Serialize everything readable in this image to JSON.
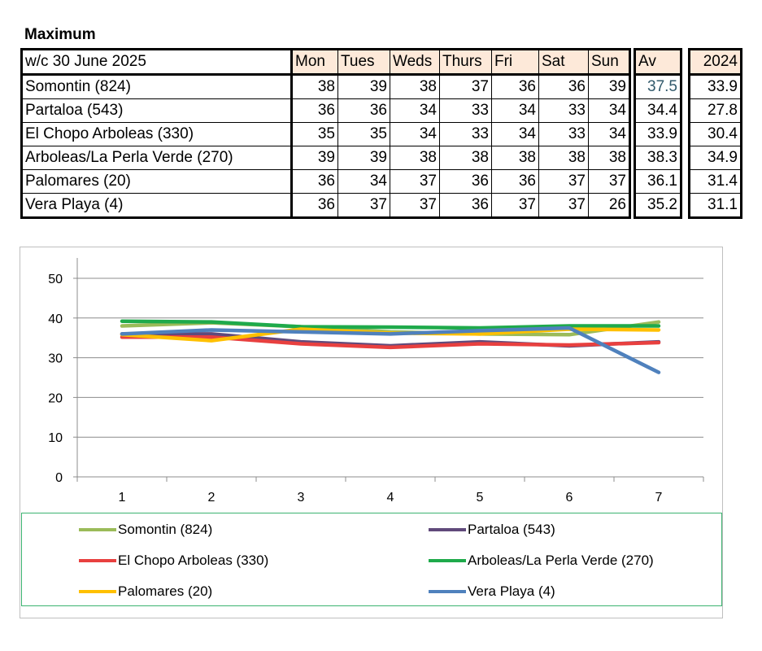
{
  "heading": "Maximum",
  "table": {
    "week_label": "w/c 30 June  2025",
    "days": [
      "Mon",
      "Tues",
      "Weds",
      "Thurs",
      "Fri",
      "Sat",
      "Sun"
    ],
    "av_header": "Av",
    "prev_header": "2024",
    "rows": [
      {
        "name": "Somontin (824)",
        "values": [
          "38",
          "39",
          "38",
          "37",
          "36",
          "36",
          "39"
        ],
        "av": "37.5",
        "prev": "33.9"
      },
      {
        "name": "Partaloa (543)",
        "values": [
          "36",
          "36",
          "34",
          "33",
          "34",
          "33",
          "34"
        ],
        "av": "34.4",
        "prev": "27.8"
      },
      {
        "name": "El Chopo  Arboleas (330)",
        "values": [
          "35",
          "35",
          "34",
          "33",
          "34",
          "33",
          "34"
        ],
        "av": "33.9",
        "prev": "30.4"
      },
      {
        "name": "Arboleas/La Perla Verde (270)",
        "values": [
          "39",
          "39",
          "38",
          "38",
          "38",
          "38",
          "38"
        ],
        "av": "38.3",
        "prev": "34.9"
      },
      {
        "name": "Palomares (20)",
        "values": [
          "36",
          "34",
          "37",
          "36",
          "36",
          "37",
          "37"
        ],
        "av": "36.1",
        "prev": "31.4"
      },
      {
        "name": "Vera Playa (4)",
        "values": [
          "36",
          "37",
          "37",
          "36",
          "37",
          "37",
          "26"
        ],
        "av": "35.2",
        "prev": "31.1"
      }
    ]
  },
  "chart_data": {
    "type": "line",
    "categories": [
      "1",
      "2",
      "3",
      "4",
      "5",
      "6",
      "7"
    ],
    "ylim": [
      0,
      50
    ],
    "yticks": [
      "0",
      "10",
      "20",
      "30",
      "40",
      "50"
    ],
    "grid": true,
    "legend_position": "bottom",
    "series": [
      {
        "name": "Somontin (824)",
        "color": "#9bbb59",
        "values": [
          38,
          38.8,
          37.8,
          36.5,
          36,
          35.8,
          39
        ]
      },
      {
        "name": "Partaloa (543)",
        "color": "#604a7b",
        "values": [
          36,
          36,
          34,
          33,
          34,
          33,
          34
        ]
      },
      {
        "name": "El Chopo  Arboleas (330)",
        "color": "#e8403f",
        "values": [
          35.2,
          35.2,
          33.5,
          32.6,
          33.5,
          33.2,
          33.8
        ]
      },
      {
        "name": "Arboleas/La Perla Verde (270)",
        "color": "#1faa4b",
        "values": [
          39.2,
          39,
          37.8,
          37.7,
          37.5,
          38,
          38
        ]
      },
      {
        "name": "Palomares (20)",
        "color": "#ffc000",
        "values": [
          35.8,
          34.3,
          37.2,
          36.2,
          36,
          37.2,
          37
        ]
      },
      {
        "name": "Vera Playa (4)",
        "color": "#4f81bd",
        "values": [
          36,
          37,
          36.5,
          36,
          36.8,
          37.5,
          26.3
        ]
      }
    ]
  }
}
